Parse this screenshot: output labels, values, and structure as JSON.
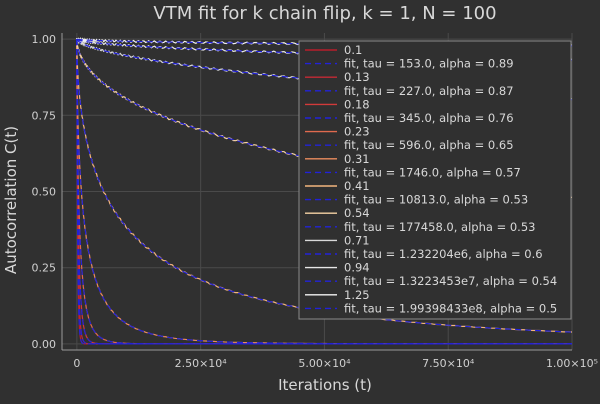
{
  "chart_data": {
    "type": "line",
    "title": "VTM fit for k chain flip, k = 1, N = 100",
    "xlabel": "Iterations (t)",
    "ylabel": "Autocorrelation C(t)",
    "xlim": [
      -3000,
      100000
    ],
    "ylim": [
      -0.02,
      1.02
    ],
    "x_ticks": [
      {
        "value": 0,
        "label": "0"
      },
      {
        "value": 25000,
        "label": "2.50×10⁴"
      },
      {
        "value": 50000,
        "label": "5.00×10⁴"
      },
      {
        "value": 75000,
        "label": "7.50×10⁴"
      },
      {
        "value": 100000,
        "label": "1.00×10⁵"
      }
    ],
    "y_ticks": [
      {
        "value": 0,
        "label": "0.00"
      },
      {
        "value": 0.25,
        "label": "0.25"
      },
      {
        "value": 0.5,
        "label": "0.50"
      },
      {
        "value": 0.75,
        "label": "0.75"
      },
      {
        "value": 1,
        "label": "1.00"
      }
    ],
    "grid": true,
    "legend_position": "top-right",
    "series": [
      {
        "name": "0.1",
        "kind": "data",
        "tau": 153.0,
        "alpha": 0.89,
        "color": "#b81d2b"
      },
      {
        "name": "fit, tau = 153.0, alpha = 0.89",
        "kind": "fit",
        "color": "#2222d8"
      },
      {
        "name": "0.13",
        "kind": "data",
        "tau": 227.0,
        "alpha": 0.87,
        "color": "#c42a35"
      },
      {
        "name": "fit, tau = 227.0, alpha = 0.87",
        "kind": "fit",
        "color": "#2222d8"
      },
      {
        "name": "0.18",
        "kind": "data",
        "tau": 345.0,
        "alpha": 0.76,
        "color": "#d23a3a"
      },
      {
        "name": "fit, tau = 345.0, alpha = 0.76",
        "kind": "fit",
        "color": "#2222d8"
      },
      {
        "name": "0.23",
        "kind": "data",
        "tau": 596.0,
        "alpha": 0.65,
        "color": "#e06a4e"
      },
      {
        "name": "fit, tau = 596.0, alpha = 0.65",
        "kind": "fit",
        "color": "#2222d8"
      },
      {
        "name": "0.31",
        "kind": "data",
        "tau": 1746.0,
        "alpha": 0.57,
        "color": "#eb8d5e"
      },
      {
        "name": "fit, tau = 1746.0, alpha = 0.57",
        "kind": "fit",
        "color": "#2222d8"
      },
      {
        "name": "0.41",
        "kind": "data",
        "tau": 10813.0,
        "alpha": 0.53,
        "color": "#f3b57d"
      },
      {
        "name": "fit, tau = 10813.0, alpha = 0.53",
        "kind": "fit",
        "color": "#2222d8"
      },
      {
        "name": "0.54",
        "kind": "data",
        "tau": 177458.0,
        "alpha": 0.53,
        "color": "#f6d3a5"
      },
      {
        "name": "fit, tau = 177458.0, alpha = 0.53",
        "kind": "fit",
        "color": "#2222d8"
      },
      {
        "name": "0.71",
        "kind": "data",
        "tau": 1232204,
        "alpha": 0.6,
        "color": "#d9d9d9"
      },
      {
        "name": "fit, tau = 1.232204e6, alpha = 0.6",
        "kind": "fit",
        "color": "#2222d8"
      },
      {
        "name": "0.94",
        "kind": "data",
        "tau": 13223453,
        "alpha": 0.54,
        "color": "#e6e6e6"
      },
      {
        "name": "fit, tau = 1.3223453e7, alpha = 0.54",
        "kind": "fit",
        "color": "#2222d8"
      },
      {
        "name": "1.25",
        "kind": "data",
        "tau": 199398433,
        "alpha": 0.5,
        "color": "#f2f2f2"
      },
      {
        "name": "fit, tau = 1.99398433e8, alpha = 0.5",
        "kind": "fit",
        "color": "#2222d8"
      }
    ]
  },
  "colors": {
    "background": "#303030",
    "plot_background": "#303030",
    "grid": "#4a4a4a",
    "axis_text": "#d0d0d0",
    "fit_line": "#2222d8",
    "legend_background": "#303030",
    "legend_border": "#8a8a8a"
  }
}
